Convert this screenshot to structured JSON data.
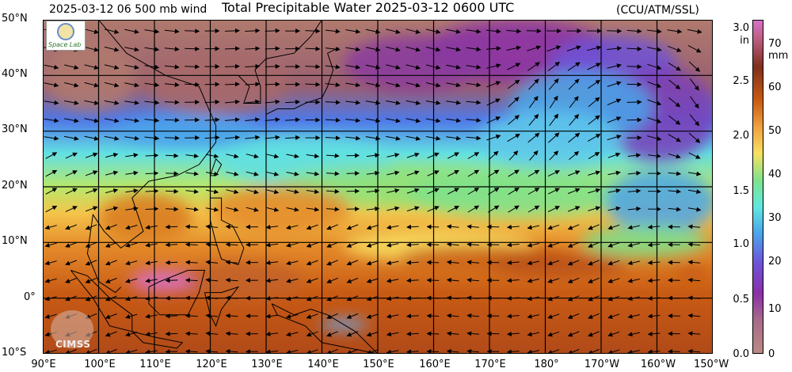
{
  "header": {
    "wind_label": "2025-03-12 06 500 mb wind",
    "title": "Total Precipitable Water  2025-03-12 0600 UTC",
    "credit": "(CCU/ATM/SSL)"
  },
  "map": {
    "lat_labels": [
      "50°N",
      "40°N",
      "30°N",
      "20°N",
      "10°N",
      "0°",
      "10°S"
    ],
    "lon_labels": [
      "90°E",
      "100°E",
      "110°E",
      "120°E",
      "130°E",
      "140°E",
      "150°E",
      "160°E",
      "170°E",
      "180°",
      "170°W",
      "160°W",
      "150°W"
    ],
    "extent": {
      "lon_min": 90,
      "lon_max": 210,
      "lat_min": -10,
      "lat_max": 50
    }
  },
  "colorbar": {
    "inch_ticks": [
      "3.0",
      "2.5",
      "2.0",
      "1.5",
      "1.0",
      "0.5",
      "0.0"
    ],
    "inch_unit": "in",
    "mm_ticks": [
      "70",
      "60",
      "50",
      "40",
      "30",
      "20",
      "10",
      "0"
    ],
    "mm_unit": "mm",
    "range_mm": [
      0,
      75
    ],
    "colors": [
      "#b98a84",
      "#7f2f1c",
      "#c85a12",
      "#f0a040",
      "#f8e060",
      "#7fe28c",
      "#5fe8e0",
      "#4aa4ea",
      "#6f52d8",
      "#8a2fa8",
      "#d870c8"
    ]
  },
  "logos": {
    "ssec": "Space Lab",
    "cimss": "CIMSS"
  }
}
